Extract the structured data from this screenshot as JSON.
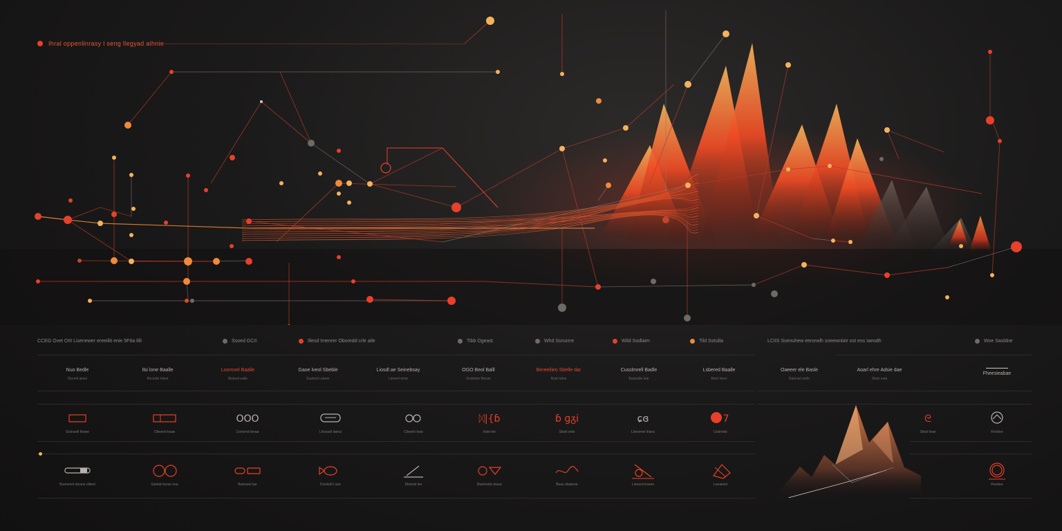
{
  "title": "Ihral oppenlinrasy l seng llegyad aihnie",
  "colors": {
    "accent": "#e8402a",
    "orange": "#f08a3a",
    "gold": "#f3b25e",
    "grey": "#6d6a68",
    "panel_bg": "#141313"
  },
  "legend": [
    {
      "label": "CCEG Ovet OIII Lisenewer ereeiliti enie 5F6a lilli",
      "color": ""
    },
    {
      "label": "Ssoed GCII",
      "color": "#6d6a68"
    },
    {
      "label": "Illesd Imenrer Oboredd crle aile",
      "color": "#e8402a"
    },
    {
      "label": "Tibb Ogeast",
      "color": "#6d6a68"
    },
    {
      "label": "Whd Ssnurrre",
      "color": "#6d6a68"
    },
    {
      "label": "Wild Sodlaim",
      "color": "#e8402a"
    },
    {
      "label": "Tild Sstsilla",
      "color": "#f08a3a"
    },
    {
      "label": "LCIIS Ssenuhew eerorwlh sneewnlatr ost eos Iaeodh",
      "color": ""
    },
    {
      "label": "Woe Sasldne",
      "color": "#6d6a68"
    }
  ],
  "row1": [
    {
      "label": "Bedle",
      "prefix": "Nuo",
      "sub": "Dlunell aiieel",
      "accent": false
    },
    {
      "label": "Baalle",
      "prefix": "Ilsi lone",
      "sub": "Bsceide lolest",
      "accent": false
    },
    {
      "label": "Baalle",
      "prefix": "Loomnel",
      "sub": "Bisieeil ealle",
      "accent": true
    },
    {
      "label": "Sbeble",
      "prefix": "Gaoe lveol",
      "sub": "Sueleid Leaner",
      "accent": false
    },
    {
      "label": "Seinebsay",
      "prefix": "Liosdl ae",
      "sub": "Lieneel ieme",
      "accent": false
    },
    {
      "label": "Balll",
      "prefix": "OGO Beol",
      "sub": "Dodiolee Bsnae",
      "accent": false
    },
    {
      "label": "Sbelle dar",
      "prefix": "Bereeliieo",
      "sub": "Bsiel ielse",
      "accent": true
    },
    {
      "label": "Badle",
      "prefix": "Cusslmrell",
      "sub": "Basisldle laie",
      "accent": false
    },
    {
      "label": "Baalle",
      "prefix": "Lsbered",
      "sub": "Bisel lneer",
      "accent": false
    },
    {
      "label": "Basle",
      "prefix": "Oaeeer ele",
      "sub": "Balnsiel aelle",
      "accent": false
    },
    {
      "label": "Adsie dae",
      "prefix": "Aoarl ehre",
      "sub": "Slsiei eaie",
      "accent": false
    },
    {
      "label": "Fheesieabae",
      "prefix": "",
      "sub": "",
      "accent": false
    }
  ],
  "row2": [
    {
      "icon": "rect-icon",
      "glyph": "",
      "cap": "Sssissell lleaee",
      "red": true
    },
    {
      "icon": "segment-bar-icon",
      "glyph": "",
      "cap": "Oliesed leaae",
      "red": true
    },
    {
      "icon": "triple-circle-icon",
      "glyph": "OOO",
      "cap": "Ceesrnd Ieeaa",
      "red": false
    },
    {
      "icon": "pill-icon",
      "glyph": "",
      "cap": "Lihsssel laena",
      "red": false
    },
    {
      "icon": "link-icon",
      "glyph": "",
      "cap": "Cbeelei leae",
      "red": false
    },
    {
      "icon": "glyph-cluster-icon",
      "glyph": "ᛞ|{ɓ",
      "cap": "Ilsiel ele",
      "red": true
    },
    {
      "icon": "glyph-cluster-icon",
      "glyph": "ɓ ɡᵹi",
      "cap": "Slseil eele",
      "red": true
    },
    {
      "icon": "ring-glyph-icon",
      "glyph": "ɕɞ",
      "cap": "Lbeseeel leaea",
      "red": false
    },
    {
      "icon": "dot-seven-icon",
      "glyph": "7",
      "cap": "Lbsineiie",
      "red": true
    },
    {
      "icon": "hook-icon",
      "glyph": "ᘓ",
      "cap": "Slisel leae",
      "red": true
    },
    {
      "icon": "circle-sketch-icon",
      "glyph": "",
      "cap": "Fleeliee",
      "red": false
    }
  ],
  "row3": [
    {
      "icon": "slider-bar-icon",
      "glyph": "",
      "cap": "Bsenenel oleane ollieel",
      "red": false
    },
    {
      "icon": "double-ring-icon",
      "glyph": "",
      "cap": "Ssiebel leese ooe",
      "red": true
    },
    {
      "icon": "chain-icon",
      "glyph": "",
      "cap": "Baniseel lae",
      "red": true
    },
    {
      "icon": "fish-icon",
      "glyph": "",
      "cap": "Diceleld l ane",
      "red": true
    },
    {
      "icon": "slash-line-icon",
      "glyph": "",
      "cap": "Dleisrel lee",
      "red": false
    },
    {
      "icon": "circle-pair-icon",
      "glyph": "",
      "cap": "Baebnoile leaue",
      "red": true
    },
    {
      "icon": "squiggle-icon",
      "glyph": "",
      "cap": "Beas diasleoe",
      "red": true
    },
    {
      "icon": "cross-icon",
      "glyph": "",
      "cap": "Lieesol leseee",
      "red": true
    },
    {
      "icon": "box-slash-icon",
      "glyph": "",
      "cap": "Leealeiel",
      "red": true
    },
    {
      "icon": "ring-icon",
      "glyph": "",
      "cap": "Fleeiiee",
      "red": true
    }
  ]
}
